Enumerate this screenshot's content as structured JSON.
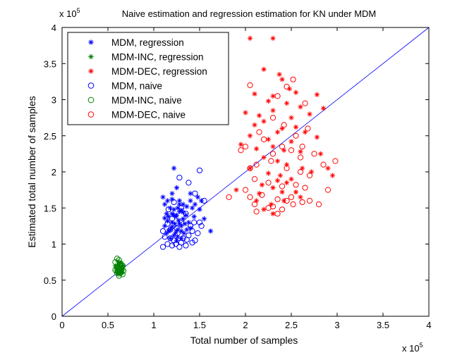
{
  "chart_data": {
    "type": "scatter",
    "title": "Naive estimation and regression estimation for KN under MDM",
    "xlabel": "Total number of samples",
    "ylabel": "Estimated total number of samples",
    "x_exponent": "x 10^5",
    "y_exponent": "x 10^5",
    "xlim": [
      0,
      4
    ],
    "ylim": [
      0,
      4
    ],
    "xticks": [
      "0",
      "0.5",
      "1",
      "1.5",
      "2",
      "2.5",
      "3",
      "3.5",
      "4"
    ],
    "yticks": [
      "0",
      "0.5",
      "1",
      "1.5",
      "2",
      "2.5",
      "3",
      "3.5",
      "4"
    ],
    "grid": false,
    "legend_position": "top-left",
    "reference_line": {
      "x": [
        0,
        4
      ],
      "y": [
        0,
        4
      ],
      "color": "#0000ff"
    },
    "series": [
      {
        "name": "MDM, regression",
        "marker": "asterisk",
        "color": "#0000ff",
        "points": [
          [
            1.2,
            1.62
          ],
          [
            1.22,
            2.05
          ],
          [
            1.25,
            1.78
          ],
          [
            1.28,
            1.55
          ],
          [
            1.3,
            1.47
          ],
          [
            1.18,
            1.5
          ],
          [
            1.15,
            1.32
          ],
          [
            1.12,
            1.25
          ],
          [
            1.14,
            1.42
          ],
          [
            1.2,
            1.3
          ],
          [
            1.24,
            1.38
          ],
          [
            1.26,
            1.2
          ],
          [
            1.28,
            1.28
          ],
          [
            1.32,
            1.35
          ],
          [
            1.3,
            1.18
          ],
          [
            1.22,
            1.12
          ],
          [
            1.18,
            1.08
          ],
          [
            1.25,
            1.05
          ],
          [
            1.28,
            1.45
          ],
          [
            1.35,
            1.4
          ],
          [
            1.38,
            1.3
          ],
          [
            1.4,
            1.22
          ],
          [
            1.42,
            1.5
          ],
          [
            1.45,
            1.55
          ],
          [
            1.48,
            1.65
          ],
          [
            1.52,
            1.6
          ],
          [
            1.55,
            1.35
          ],
          [
            1.62,
            1.18
          ],
          [
            1.1,
            1.65
          ],
          [
            1.12,
            1.55
          ],
          [
            1.16,
            1.38
          ],
          [
            1.2,
            1.42
          ],
          [
            1.23,
            1.28
          ],
          [
            1.27,
            1.33
          ],
          [
            1.3,
            1.25
          ],
          [
            1.33,
            1.15
          ],
          [
            1.36,
            1.2
          ],
          [
            1.16,
            1.18
          ],
          [
            1.22,
            1.4
          ],
          [
            1.26,
            1.5
          ],
          [
            1.32,
            1.44
          ],
          [
            1.36,
            1.52
          ],
          [
            1.4,
            1.6
          ],
          [
            1.12,
            1.36
          ],
          [
            1.18,
            1.2
          ],
          [
            1.24,
            1.16
          ],
          [
            1.34,
            1.28
          ],
          [
            1.44,
            1.38
          ],
          [
            1.5,
            1.48
          ],
          [
            1.2,
            1.7
          ],
          [
            1.15,
            1.6
          ],
          [
            1.28,
            1.6
          ],
          [
            1.26,
            1.1
          ],
          [
            1.3,
            1.08
          ],
          [
            1.14,
            1.15
          ],
          [
            1.2,
            1.24
          ],
          [
            1.4,
            1.7
          ],
          [
            1.22,
            1.48
          ],
          [
            1.32,
            1.55
          ],
          [
            1.25,
            1.4
          ]
        ]
      },
      {
        "name": "MDM-INC, regression",
        "marker": "asterisk",
        "color": "#008000",
        "points": [
          [
            0.58,
            0.7
          ],
          [
            0.6,
            0.66
          ],
          [
            0.62,
            0.72
          ],
          [
            0.63,
            0.62
          ],
          [
            0.65,
            0.68
          ],
          [
            0.6,
            0.6
          ],
          [
            0.64,
            0.74
          ],
          [
            0.66,
            0.64
          ],
          [
            0.61,
            0.69
          ],
          [
            0.62,
            0.58
          ],
          [
            0.67,
            0.7
          ],
          [
            0.59,
            0.64
          ],
          [
            0.63,
            0.66
          ],
          [
            0.65,
            0.6
          ],
          [
            0.61,
            0.76
          ]
        ]
      },
      {
        "name": "MDM-DEC, regression",
        "marker": "asterisk",
        "color": "#ff0000",
        "points": [
          [
            2.05,
            3.85
          ],
          [
            2.3,
            3.85
          ],
          [
            2.2,
            3.42
          ],
          [
            2.37,
            3.35
          ],
          [
            2.4,
            3.28
          ],
          [
            2.48,
            3.15
          ],
          [
            2.1,
            3.08
          ],
          [
            2.3,
            3.05
          ],
          [
            2.55,
            3.1
          ],
          [
            2.78,
            3.07
          ],
          [
            2.25,
            2.98
          ],
          [
            2.45,
            2.95
          ],
          [
            2.6,
            2.9
          ],
          [
            2.0,
            2.82
          ],
          [
            2.15,
            2.78
          ],
          [
            2.3,
            2.85
          ],
          [
            2.5,
            2.75
          ],
          [
            2.7,
            2.8
          ],
          [
            2.85,
            2.88
          ],
          [
            2.1,
            2.65
          ],
          [
            2.2,
            2.7
          ],
          [
            2.4,
            2.6
          ],
          [
            2.55,
            2.62
          ],
          [
            2.65,
            2.55
          ],
          [
            2.05,
            2.5
          ],
          [
            2.25,
            2.45
          ],
          [
            2.35,
            2.55
          ],
          [
            2.5,
            2.42
          ],
          [
            2.78,
            2.48
          ],
          [
            1.95,
            2.38
          ],
          [
            2.12,
            2.32
          ],
          [
            2.3,
            2.35
          ],
          [
            2.42,
            2.3
          ],
          [
            2.6,
            2.28
          ],
          [
            2.82,
            2.25
          ],
          [
            2.2,
            2.2
          ],
          [
            2.35,
            2.15
          ],
          [
            2.45,
            2.1
          ],
          [
            2.62,
            2.05
          ],
          [
            2.9,
            2.05
          ],
          [
            2.05,
            2.05
          ],
          [
            2.25,
            1.98
          ],
          [
            2.38,
            1.95
          ],
          [
            2.5,
            1.9
          ],
          [
            2.72,
            2.0
          ],
          [
            2.95,
            1.95
          ],
          [
            2.18,
            1.82
          ],
          [
            2.3,
            1.78
          ],
          [
            2.45,
            1.85
          ],
          [
            1.9,
            1.75
          ],
          [
            2.15,
            1.7
          ],
          [
            2.4,
            1.72
          ],
          [
            2.6,
            1.65
          ],
          [
            2.12,
            1.6
          ],
          [
            2.28,
            1.55
          ],
          [
            2.3,
            1.42
          ],
          [
            2.2,
            1.48
          ],
          [
            2.42,
            1.6
          ],
          [
            2.55,
            1.72
          ],
          [
            2.35,
            1.88
          ]
        ]
      },
      {
        "name": "MDM, naive",
        "marker": "circle",
        "color": "#0000ff",
        "points": [
          [
            1.28,
            1.92
          ],
          [
            1.5,
            2.02
          ],
          [
            1.38,
            1.85
          ],
          [
            1.45,
            1.7
          ],
          [
            1.55,
            1.6
          ],
          [
            1.5,
            1.3
          ],
          [
            1.52,
            1.25
          ],
          [
            1.48,
            1.15
          ],
          [
            1.42,
            1.02
          ],
          [
            1.35,
            0.98
          ],
          [
            1.28,
            0.96
          ],
          [
            1.2,
            0.98
          ],
          [
            1.15,
            1.0
          ],
          [
            1.1,
            0.96
          ],
          [
            1.12,
            1.1
          ],
          [
            1.18,
            1.2
          ],
          [
            1.22,
            1.05
          ],
          [
            1.26,
            1.15
          ],
          [
            1.32,
            1.08
          ],
          [
            1.38,
            1.12
          ],
          [
            1.4,
            1.25
          ],
          [
            1.3,
            1.3
          ],
          [
            1.25,
            1.22
          ],
          [
            1.2,
            1.35
          ],
          [
            1.15,
            1.28
          ],
          [
            1.35,
            1.42
          ],
          [
            1.42,
            1.18
          ],
          [
            1.45,
            1.05
          ],
          [
            1.1,
            1.18
          ],
          [
            1.18,
            1.08
          ],
          [
            1.24,
            1.0
          ],
          [
            1.3,
            1.02
          ],
          [
            1.36,
            1.06
          ],
          [
            1.44,
            1.3
          ],
          [
            1.3,
            1.5
          ],
          [
            1.22,
            1.58
          ],
          [
            1.16,
            1.48
          ]
        ]
      },
      {
        "name": "MDM-INC, naive",
        "marker": "circle",
        "color": "#008000",
        "points": [
          [
            0.6,
            0.8
          ],
          [
            0.58,
            0.75
          ],
          [
            0.62,
            0.78
          ],
          [
            0.64,
            0.73
          ],
          [
            0.6,
            0.68
          ],
          [
            0.63,
            0.65
          ],
          [
            0.66,
            0.7
          ],
          [
            0.61,
            0.62
          ],
          [
            0.64,
            0.6
          ],
          [
            0.58,
            0.64
          ],
          [
            0.66,
            0.58
          ],
          [
            0.62,
            0.56
          ],
          [
            0.6,
            0.6
          ],
          [
            0.65,
            0.66
          ],
          [
            0.63,
            0.72
          ],
          [
            0.67,
            0.63
          ]
        ]
      },
      {
        "name": "MDM-DEC, naive",
        "marker": "circle",
        "color": "#ff0000",
        "points": [
          [
            2.05,
            3.2
          ],
          [
            2.52,
            3.28
          ],
          [
            2.45,
            3.18
          ],
          [
            2.35,
            3.05
          ],
          [
            2.65,
            2.95
          ],
          [
            2.42,
            2.65
          ],
          [
            2.15,
            2.55
          ],
          [
            2.3,
            2.75
          ],
          [
            2.55,
            2.5
          ],
          [
            2.68,
            2.6
          ],
          [
            2.2,
            2.45
          ],
          [
            2.4,
            2.35
          ],
          [
            2.5,
            2.3
          ],
          [
            2.62,
            2.35
          ],
          [
            2.75,
            2.25
          ],
          [
            2.0,
            2.35
          ],
          [
            1.95,
            2.3
          ],
          [
            2.05,
            2.05
          ],
          [
            2.12,
            2.1
          ],
          [
            2.28,
            2.15
          ],
          [
            2.45,
            2.05
          ],
          [
            2.6,
            2.0
          ],
          [
            2.7,
            1.95
          ],
          [
            2.85,
            2.1
          ],
          [
            2.98,
            2.15
          ],
          [
            2.1,
            1.9
          ],
          [
            2.25,
            1.85
          ],
          [
            2.4,
            1.8
          ],
          [
            2.55,
            1.82
          ],
          [
            2.65,
            1.78
          ],
          [
            2.9,
            1.75
          ],
          [
            2.0,
            1.75
          ],
          [
            2.18,
            1.68
          ],
          [
            2.35,
            1.62
          ],
          [
            2.5,
            1.65
          ],
          [
            2.62,
            1.58
          ],
          [
            1.82,
            1.65
          ],
          [
            2.1,
            1.55
          ],
          [
            2.25,
            1.5
          ],
          [
            2.4,
            1.48
          ],
          [
            2.52,
            1.55
          ],
          [
            2.7,
            1.6
          ],
          [
            2.8,
            1.55
          ],
          [
            2.12,
            1.45
          ],
          [
            2.3,
            1.52
          ],
          [
            2.35,
            1.42
          ],
          [
            2.45,
            1.6
          ],
          [
            2.05,
            1.65
          ],
          [
            2.6,
            2.2
          ],
          [
            2.3,
            2.25
          ]
        ]
      }
    ]
  }
}
